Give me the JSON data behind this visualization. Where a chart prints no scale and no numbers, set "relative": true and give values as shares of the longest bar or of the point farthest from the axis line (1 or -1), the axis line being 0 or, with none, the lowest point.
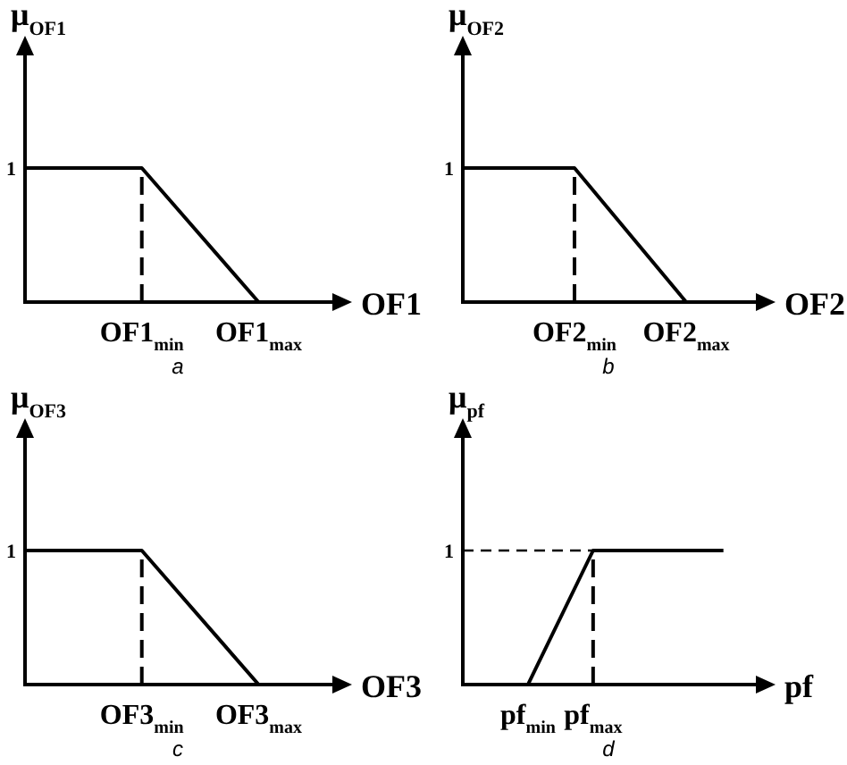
{
  "chart_data": [
    {
      "type": "line",
      "title": "a",
      "ylabel": "μ$_{OF1}$",
      "xlabel": "OF1",
      "relative": true,
      "marker": "none",
      "categories": [
        null,
        "OF1$_{min}$",
        "OF1$_{max}$"
      ],
      "series": [
        {
          "color": "#000000",
          "values": [
            1,
            1,
            0
          ]
        }
      ],
      "ref_lines": [
        {
          "axis": "x",
          "value": "OF1$_{min}$",
          "color": "#000000",
          "line_style": "dashed"
        }
      ],
      "annotations": [
        "1"
      ]
    },
    {
      "type": "line",
      "title": "b",
      "ylabel": "μ$_{OF2}$",
      "xlabel": "OF2",
      "relative": true,
      "marker": "none",
      "categories": [
        null,
        "OF2$_{min}$",
        "OF2$_{max}$"
      ],
      "series": [
        {
          "color": "#000000",
          "values": [
            1,
            1,
            0
          ]
        }
      ],
      "ref_lines": [
        {
          "axis": "x",
          "value": "OF2$_{min}$",
          "color": "#000000",
          "line_style": "dashed"
        }
      ],
      "annotations": [
        "1"
      ]
    },
    {
      "type": "line",
      "title": "c",
      "ylabel": "μ$_{OF3}$",
      "xlabel": "OF3",
      "relative": true,
      "marker": "none",
      "categories": [
        null,
        "OF3$_{min}$",
        "OF3$_{max}$"
      ],
      "series": [
        {
          "color": "#000000",
          "values": [
            1,
            1,
            0
          ]
        }
      ],
      "ref_lines": [
        {
          "axis": "x",
          "value": "OF3$_{min}$",
          "color": "#000000",
          "line_style": "dashed"
        }
      ],
      "annotations": [
        "1"
      ]
    },
    {
      "type": "line",
      "title": "d",
      "ylabel": "μ$_{pf}$",
      "xlabel": "pf",
      "relative": true,
      "marker": "none",
      "categories": [
        null,
        "pf$_{min}$",
        "pf$_{max}$",
        null,
        null
      ],
      "series": [
        {
          "color": "#000000",
          "values": [
            null,
            0,
            1,
            1,
            1
          ]
        },
        {
          "color": "#000000",
          "line_style": "dashed",
          "values": [
            1,
            1,
            1,
            null,
            null
          ]
        }
      ],
      "ref_lines": [
        {
          "axis": "x",
          "value": "pf$_{max}$",
          "color": "#000000",
          "line_style": "dashed"
        }
      ],
      "annotations": [
        "1"
      ]
    }
  ]
}
